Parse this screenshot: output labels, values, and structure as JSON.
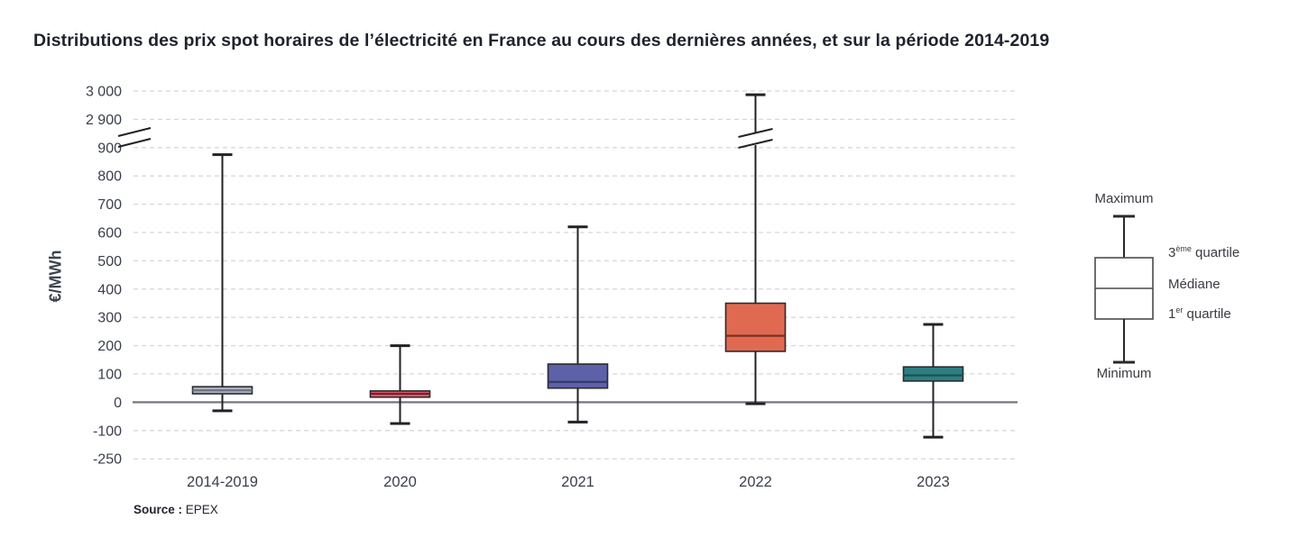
{
  "title": "Distributions des prix spot horaires de l’électricité en France au cours des dernières années, et sur la période 2014-2019",
  "ylabel": "€/MWh",
  "source": {
    "label": "Source :",
    "value": "EPEX"
  },
  "legend": {
    "maximum": "Maximum",
    "minimum": "Minimum",
    "q3": {
      "base": "3",
      "sup": "ème",
      "rest": " quartile"
    },
    "median": "Médiane",
    "q1": {
      "base": "1",
      "sup": "er",
      "rest": " quartile"
    }
  },
  "chart_data": {
    "type": "boxplot",
    "title": "Distributions des prix spot horaires de l’électricité en France au cours des dernières années, et sur la période 2014-2019",
    "ylabel": "€/MWh",
    "unit": "€/MWh",
    "grid": "dashed-horizontal",
    "axis_break_between": [
      900,
      2900
    ],
    "ylim_segments": [
      [
        -250,
        900
      ],
      [
        2900,
        3000
      ]
    ],
    "yticks": [
      {
        "label": "3 000",
        "value": 3000
      },
      {
        "label": "2 900",
        "value": 2900
      },
      {
        "label": "900",
        "value": 900
      },
      {
        "label": "800",
        "value": 800
      },
      {
        "label": "700",
        "value": 700
      },
      {
        "label": "600",
        "value": 600
      },
      {
        "label": "500",
        "value": 500
      },
      {
        "label": "400",
        "value": 400
      },
      {
        "label": "300",
        "value": 300
      },
      {
        "label": "200",
        "value": 200
      },
      {
        "label": "100",
        "value": 100
      },
      {
        "label": "0",
        "value": 0
      },
      {
        "label": "-100",
        "value": -100
      },
      {
        "label": "-250",
        "value": -250
      }
    ],
    "series": [
      {
        "category": "2014-2019",
        "min": -30,
        "q1": 30,
        "median": 42,
        "q3": 55,
        "max": 875,
        "color": "#a9aebc",
        "median_color": "#6e7380",
        "crosses_break": false
      },
      {
        "category": "2020",
        "min": -75,
        "q1": 18,
        "median": 30,
        "q3": 40,
        "max": 200,
        "color": "#e05f6b",
        "median_color": "#7c1f2c",
        "crosses_break": false
      },
      {
        "category": "2021",
        "min": -70,
        "q1": 50,
        "median": 72,
        "q3": 135,
        "max": 620,
        "color": "#5d61a7",
        "median_color": "#33386b",
        "crosses_break": false
      },
      {
        "category": "2022",
        "min": -5,
        "q1": 180,
        "median": 235,
        "q3": 350,
        "max": 2987,
        "color": "#e06a51",
        "median_color": "#7a3020",
        "crosses_break": true
      },
      {
        "category": "2023",
        "min": -135,
        "q1": 75,
        "median": 95,
        "q3": 125,
        "max": 275,
        "color": "#2e7e80",
        "median_color": "#184f52",
        "crosses_break": false
      }
    ],
    "colors": {
      "grid": "#d8d8dc",
      "zero_line": "#74777e",
      "whisker": "#222226",
      "box_stroke": "#2a2a2e",
      "tick_text": "#3b404a"
    }
  }
}
